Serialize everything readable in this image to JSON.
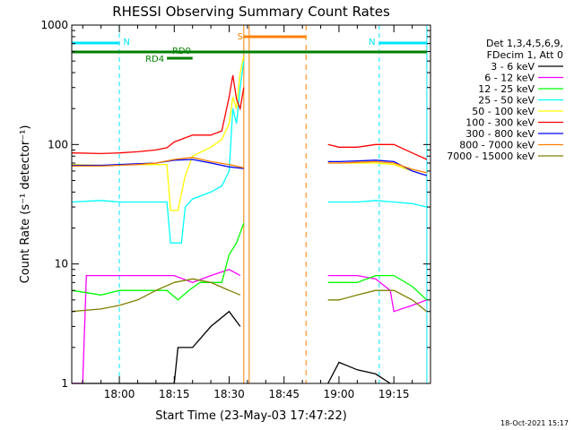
{
  "chart_data": {
    "type": "line",
    "title": "RHESSI Observing Summary Count Rates",
    "xlabel": "Start Time (23-May-03 17:47:22)",
    "ylabel": "Count Rate (s⁻¹ detector⁻¹)",
    "yscale": "log",
    "ylim": [
      1,
      1000
    ],
    "xlim": [
      "17:47",
      "19:25"
    ],
    "x_ticks": [
      "18:00",
      "18:15",
      "18:30",
      "18:45",
      "19:00",
      "19:15"
    ],
    "y_ticks": [
      "1",
      "10",
      "100",
      "1000"
    ],
    "legend_header": [
      "Det 1,3,4,5,6,9,",
      "FDecim 1, Att 0"
    ],
    "legend_placement": "right",
    "timestamp": "18-Oct-2021 15:17",
    "annotations": [
      {
        "text": "N",
        "color": "#00e5ff",
        "x_start": "17:47",
        "x_end": "18:00",
        "note": "night"
      },
      {
        "text": "N",
        "color": "#00e5ff",
        "x_start": "19:11",
        "x_end": "19:24",
        "note": "night"
      },
      {
        "text": "S",
        "color": "#ff7f00",
        "x_start": "18:34",
        "x_end": "18:51",
        "note": "SAA"
      },
      {
        "text": "RD0",
        "color": "#007f00",
        "x_start": "17:47",
        "x_end": "19:24"
      },
      {
        "text": "RD4",
        "color": "#007f00",
        "x_start": "18:13",
        "x_end": "18:20"
      }
    ],
    "series": [
      {
        "name": "3 - 6 keV",
        "color": "#000000",
        "segments": [
          [
            [
              "17:47",
              1
            ],
            [
              "18:15",
              1
            ],
            [
              "18:16",
              2
            ],
            [
              "18:20",
              2
            ],
            [
              "18:25",
              3
            ],
            [
              "18:30",
              4
            ],
            [
              "18:33",
              3
            ]
          ],
          [
            [
              "18:57",
              1
            ],
            [
              "19:00",
              1.5
            ],
            [
              "19:05",
              1.3
            ],
            [
              "19:10",
              1.2
            ],
            [
              "19:14",
              1
            ]
          ]
        ]
      },
      {
        "name": "6 - 12 keV",
        "color": "#ff00ff",
        "segments": [
          [
            [
              "17:47",
              1
            ],
            [
              "17:50",
              1
            ],
            [
              "17:51",
              8
            ],
            [
              "18:00",
              8
            ],
            [
              "18:05",
              8
            ],
            [
              "18:10",
              8
            ],
            [
              "18:15",
              8
            ],
            [
              "18:20",
              7
            ],
            [
              "18:25",
              8
            ],
            [
              "18:30",
              9
            ],
            [
              "18:33",
              8
            ]
          ],
          [
            [
              "18:57",
              8
            ],
            [
              "19:00",
              8
            ],
            [
              "19:05",
              8
            ],
            [
              "19:10",
              7.5
            ],
            [
              "19:14",
              6
            ],
            [
              "19:15",
              4
            ],
            [
              "19:20",
              4.5
            ],
            [
              "19:24",
              5
            ]
          ]
        ]
      },
      {
        "name": "12 - 25 keV",
        "color": "#00ff00",
        "segments": [
          [
            [
              "17:47",
              6
            ],
            [
              "17:55",
              5.5
            ],
            [
              "18:00",
              6
            ],
            [
              "18:05",
              6
            ],
            [
              "18:10",
              6
            ],
            [
              "18:13",
              6
            ],
            [
              "18:16",
              5
            ],
            [
              "18:19",
              6
            ],
            [
              "18:22",
              7
            ],
            [
              "18:25",
              7
            ],
            [
              "18:28",
              7
            ],
            [
              "18:30",
              12
            ],
            [
              "18:32",
              15
            ],
            [
              "18:34",
              22
            ]
          ],
          [
            [
              "18:57",
              7
            ],
            [
              "19:00",
              7
            ],
            [
              "19:05",
              7
            ],
            [
              "19:10",
              8
            ],
            [
              "19:15",
              8
            ],
            [
              "19:20",
              6.5
            ],
            [
              "19:24",
              5
            ]
          ]
        ]
      },
      {
        "name": "25 - 50 keV",
        "color": "#00ffff",
        "segments": [
          [
            [
              "17:47",
              33
            ],
            [
              "17:55",
              34
            ],
            [
              "18:00",
              33
            ],
            [
              "18:05",
              33
            ],
            [
              "18:10",
              33
            ],
            [
              "18:13",
              33
            ],
            [
              "18:14",
              15
            ],
            [
              "18:17",
              15
            ],
            [
              "18:18",
              30
            ],
            [
              "18:20",
              35
            ],
            [
              "18:25",
              40
            ],
            [
              "18:28",
              45
            ],
            [
              "18:30",
              60
            ],
            [
              "18:31",
              200
            ],
            [
              "18:32",
              150
            ],
            [
              "18:33",
              300
            ],
            [
              "18:34",
              500
            ]
          ],
          [
            [
              "18:57",
              33
            ],
            [
              "19:00",
              33
            ],
            [
              "19:05",
              33
            ],
            [
              "19:10",
              34
            ],
            [
              "19:15",
              33
            ],
            [
              "19:20",
              32
            ],
            [
              "19:24",
              30
            ]
          ]
        ]
      },
      {
        "name": "50 - 100 keV",
        "color": "#ffff00",
        "segments": [
          [
            [
              "17:47",
              68
            ],
            [
              "17:55",
              67
            ],
            [
              "18:00",
              68
            ],
            [
              "18:05",
              68
            ],
            [
              "18:10",
              68
            ],
            [
              "18:13",
              68
            ],
            [
              "18:14",
              28
            ],
            [
              "18:16",
              28
            ],
            [
              "18:18",
              55
            ],
            [
              "18:20",
              80
            ],
            [
              "18:25",
              95
            ],
            [
              "18:28",
              110
            ],
            [
              "18:30",
              150
            ],
            [
              "18:31",
              250
            ],
            [
              "18:32",
              200
            ],
            [
              "18:33",
              400
            ],
            [
              "18:34",
              550
            ]
          ],
          [
            [
              "18:57",
              70
            ],
            [
              "19:00",
              70
            ],
            [
              "19:05",
              70
            ],
            [
              "19:10",
              70
            ],
            [
              "19:15",
              68
            ],
            [
              "19:20",
              60
            ],
            [
              "19:24",
              55
            ]
          ]
        ]
      },
      {
        "name": "100 - 300 keV",
        "color": "#ff0000",
        "segments": [
          [
            [
              "17:47",
              85
            ],
            [
              "17:55",
              84
            ],
            [
              "18:00",
              85
            ],
            [
              "18:05",
              87
            ],
            [
              "18:10",
              90
            ],
            [
              "18:13",
              94
            ],
            [
              "18:15",
              105
            ],
            [
              "18:20",
              120
            ],
            [
              "18:25",
              120
            ],
            [
              "18:28",
              130
            ],
            [
              "18:30",
              250
            ],
            [
              "18:31",
              380
            ],
            [
              "18:32",
              240
            ],
            [
              "18:33",
              200
            ],
            [
              "18:34",
              300
            ]
          ],
          [
            [
              "18:57",
              100
            ],
            [
              "19:00",
              95
            ],
            [
              "19:05",
              95
            ],
            [
              "19:10",
              100
            ],
            [
              "19:15",
              100
            ],
            [
              "19:20",
              85
            ],
            [
              "19:24",
              75
            ]
          ]
        ]
      },
      {
        "name": "300 - 800 keV",
        "color": "#0000ff",
        "segments": [
          [
            [
              "17:47",
              67
            ],
            [
              "17:55",
              67
            ],
            [
              "18:00",
              68
            ],
            [
              "18:05",
              69
            ],
            [
              "18:10",
              70
            ],
            [
              "18:15",
              74
            ],
            [
              "18:20",
              75
            ],
            [
              "18:25",
              70
            ],
            [
              "18:30",
              65
            ],
            [
              "18:34",
              63
            ]
          ],
          [
            [
              "18:57",
              72
            ],
            [
              "19:00",
              72
            ],
            [
              "19:05",
              73
            ],
            [
              "19:10",
              74
            ],
            [
              "19:15",
              72
            ],
            [
              "19:20",
              60
            ],
            [
              "19:24",
              55
            ]
          ]
        ]
      },
      {
        "name": "800 - 7000 keV",
        "color": "#ff7f00",
        "segments": [
          [
            [
              "17:47",
              66
            ],
            [
              "17:55",
              66
            ],
            [
              "18:00",
              67
            ],
            [
              "18:05",
              68
            ],
            [
              "18:10",
              70
            ],
            [
              "18:15",
              75
            ],
            [
              "18:20",
              78
            ],
            [
              "18:25",
              72
            ],
            [
              "18:30",
              68
            ],
            [
              "18:34",
              64
            ]
          ],
          [
            [
              "18:57",
              70
            ],
            [
              "19:00",
              70
            ],
            [
              "19:05",
              71
            ],
            [
              "19:10",
              72
            ],
            [
              "19:15",
              70
            ],
            [
              "19:20",
              62
            ],
            [
              "19:24",
              58
            ]
          ]
        ]
      },
      {
        "name": "7000 - 15000 keV",
        "color": "#7f7f00",
        "segments": [
          [
            [
              "17:47",
              4
            ],
            [
              "17:55",
              4.2
            ],
            [
              "18:00",
              4.5
            ],
            [
              "18:05",
              5
            ],
            [
              "18:10",
              6
            ],
            [
              "18:15",
              7
            ],
            [
              "18:20",
              7.5
            ],
            [
              "18:25",
              7
            ],
            [
              "18:30",
              6
            ],
            [
              "18:33",
              5.5
            ]
          ],
          [
            [
              "18:57",
              5
            ],
            [
              "19:00",
              5
            ],
            [
              "19:05",
              5.5
            ],
            [
              "19:10",
              6
            ],
            [
              "19:15",
              6
            ],
            [
              "19:20",
              5
            ],
            [
              "19:24",
              4
            ]
          ]
        ]
      }
    ]
  }
}
